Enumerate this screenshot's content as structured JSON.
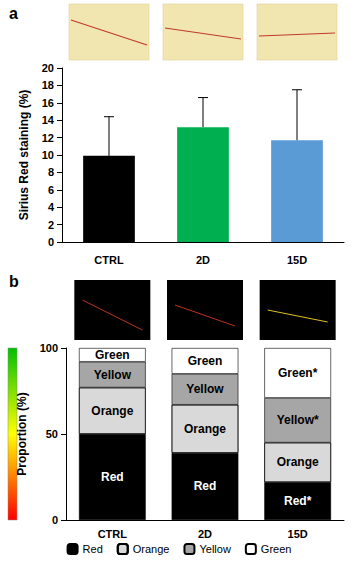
{
  "chart_data": [
    {
      "type": "bar",
      "title": "a",
      "categories": [
        "CTRL",
        "2D",
        "15D"
      ],
      "values": [
        9.9,
        13.2,
        11.7
      ],
      "errors": [
        4.5,
        3.4,
        5.8
      ],
      "colors": [
        "#000000",
        "#00b050",
        "#5b9bd5"
      ],
      "ylabel": "Sirius Red staining (%)",
      "ylim": [
        0,
        20
      ],
      "yticks": [
        0,
        2,
        4,
        6,
        8,
        10,
        12,
        14,
        16,
        18,
        20
      ],
      "grid": false
    },
    {
      "type": "bar",
      "title": "b",
      "stacked": true,
      "categories": [
        "CTRL",
        "2D",
        "15D"
      ],
      "series": [
        {
          "name": "Red",
          "color": "#000000",
          "values": [
            50,
            39,
            22
          ],
          "segment_labels": [
            "Red",
            "Red",
            "Red*"
          ]
        },
        {
          "name": "Orange",
          "color": "#d9d9d9",
          "values": [
            27,
            28,
            23
          ],
          "segment_labels": [
            "Orange",
            "Orange",
            "Orange"
          ]
        },
        {
          "name": "Yellow",
          "color": "#a6a6a6",
          "values": [
            15,
            18,
            26
          ],
          "segment_labels": [
            "Yellow",
            "Yellow",
            "Yellow*"
          ]
        },
        {
          "name": "Green",
          "color": "#ffffff",
          "values": [
            8,
            15,
            29
          ],
          "segment_labels": [
            "Green",
            "Green",
            "Green*"
          ]
        }
      ],
      "ylabel": "Proportion (%)",
      "ylim": [
        0,
        100
      ],
      "yticks": [
        0,
        50,
        100
      ],
      "legend": "bottom",
      "grid": false
    }
  ]
}
